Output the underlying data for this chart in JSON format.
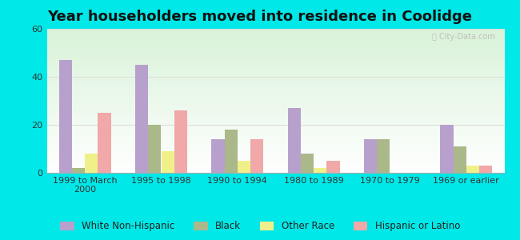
{
  "title": "Year householders moved into residence in Coolidge",
  "categories": [
    "1999 to March\n2000",
    "1995 to 1998",
    "1990 to 1994",
    "1980 to 1989",
    "1970 to 1979",
    "1969 or earlier"
  ],
  "series": {
    "White Non-Hispanic": [
      47,
      45,
      14,
      27,
      14,
      20
    ],
    "Black": [
      2,
      20,
      18,
      8,
      14,
      11
    ],
    "Other Race": [
      8,
      9,
      5,
      2,
      0,
      3
    ],
    "Hispanic or Latino": [
      25,
      26,
      14,
      5,
      0,
      3
    ]
  },
  "colors": {
    "White Non-Hispanic": "#b8a0cc",
    "Black": "#aab88a",
    "Other Race": "#f0f08a",
    "Hispanic or Latino": "#f0a8a8"
  },
  "ylim": [
    0,
    60
  ],
  "yticks": [
    0,
    20,
    40,
    60
  ],
  "bar_width": 0.17,
  "background_outer": "#00e8e8",
  "grid_color": "#dddddd",
  "title_fontsize": 13,
  "tick_fontsize": 8,
  "legend_fontsize": 8.5
}
